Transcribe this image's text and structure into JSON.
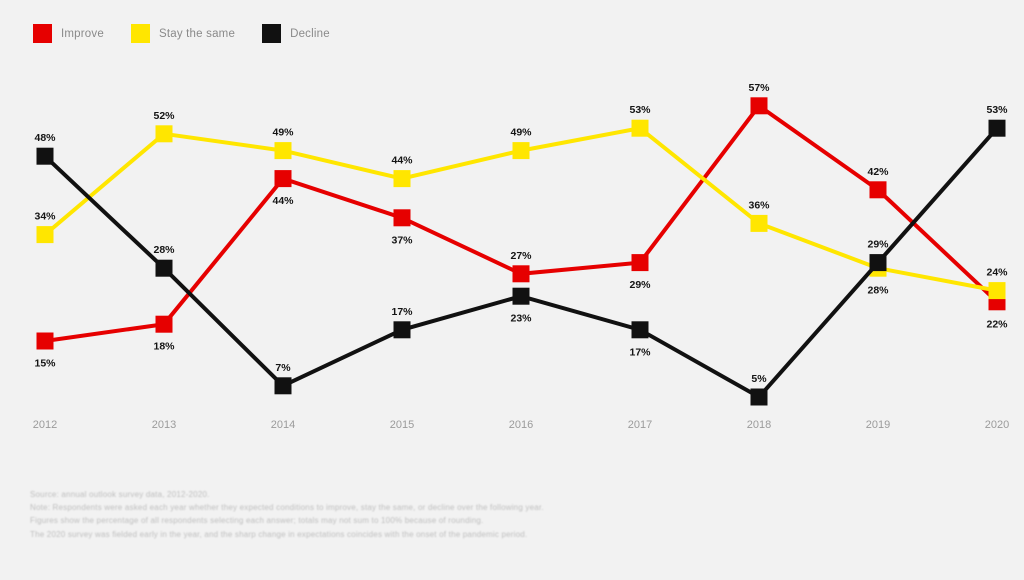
{
  "colors": {
    "background": "#f2f2f2",
    "improve": "#e60000",
    "stay_the_same": "#ffe600",
    "decline": "#111111",
    "data_label_text": "#141414",
    "axis_text": "#9b9b9b",
    "legend_text": "#8a8a8a",
    "footnote_text": "#b8b8b8"
  },
  "legend": {
    "items": [
      {
        "label": "Improve",
        "color": "#e60000"
      },
      {
        "label": "Stay the same",
        "color": "#ffe600"
      },
      {
        "label": "Decline",
        "color": "#111111"
      }
    ]
  },
  "chart_data": {
    "type": "line",
    "title": "",
    "xlabel": "",
    "ylabel": "",
    "x": [
      "2012",
      "2013",
      "2014",
      "2015",
      "2016",
      "2017",
      "2018",
      "2019",
      "2020"
    ],
    "series": [
      {
        "name": "Improve",
        "color": "#e60000",
        "values": [
          15,
          18,
          44,
          37,
          27,
          29,
          57,
          42,
          22
        ],
        "labels": [
          "15%",
          "18%",
          "44%",
          "37%",
          "27%",
          "29%",
          "57%",
          "42%",
          "22%"
        ],
        "label_position": [
          "below",
          "below",
          "below",
          "below",
          "above",
          "below",
          "above",
          "above",
          "below"
        ]
      },
      {
        "name": "Stay the same",
        "color": "#ffe600",
        "values": [
          34,
          52,
          49,
          44,
          49,
          53,
          36,
          28,
          24
        ],
        "labels": [
          "34%",
          "52%",
          "49%",
          "44%",
          "49%",
          "53%",
          "36%",
          "28%",
          "24%"
        ],
        "label_position": [
          "above",
          "above",
          "above",
          "above",
          "above",
          "above",
          "above",
          "below",
          "above"
        ]
      },
      {
        "name": "Decline",
        "color": "#111111",
        "values": [
          48,
          28,
          7,
          17,
          23,
          17,
          5,
          29,
          53
        ],
        "labels": [
          "48%",
          "28%",
          "7%",
          "17%",
          "23%",
          "17%",
          "5%",
          "29%",
          "53%"
        ],
        "label_position": [
          "above",
          "above",
          "above",
          "above",
          "below",
          "below",
          "above",
          "above",
          "above"
        ]
      }
    ],
    "value_suffix": "%",
    "ylim": [
      0,
      60
    ],
    "grid": false,
    "marker": "square",
    "legend_position": "top-left"
  },
  "footnote": {
    "lines": [
      "Source: annual outlook survey data, 2012-2020.",
      "Note: Respondents were asked each year whether they expected conditions to improve, stay the same, or decline over the following year.",
      "Figures show the percentage of all respondents selecting each answer; totals may not sum to 100% because of rounding.",
      "The 2020 survey was fielded early in the year, and the sharp change in expectations coincides with the onset of the pandemic period."
    ]
  }
}
